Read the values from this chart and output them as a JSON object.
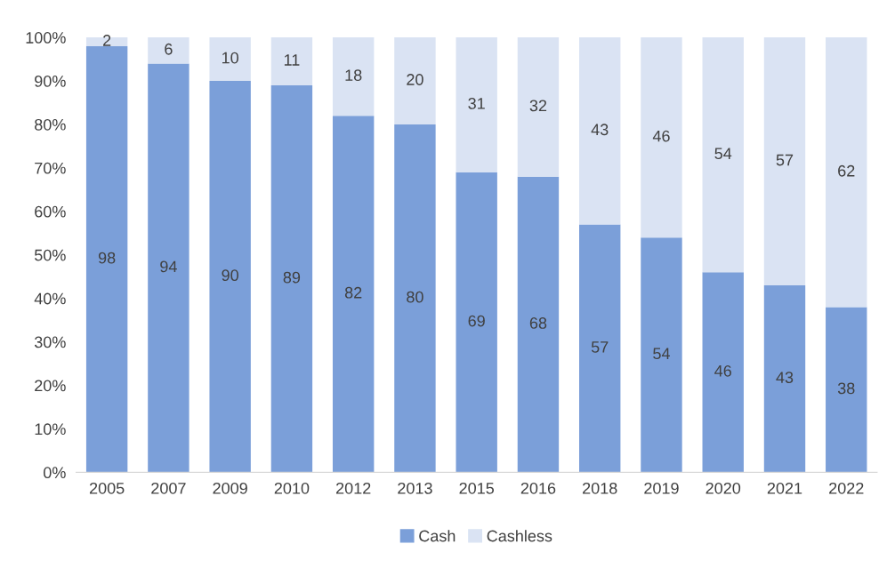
{
  "chart_data": {
    "type": "bar",
    "stacked": true,
    "categories": [
      "2005",
      "2007",
      "2009",
      "2010",
      "2012",
      "2013",
      "2015",
      "2016",
      "2018",
      "2019",
      "2020",
      "2021",
      "2022"
    ],
    "series": [
      {
        "name": "Cash",
        "color": "#7b9fd9",
        "values": [
          98,
          94,
          90,
          89,
          82,
          80,
          69,
          68,
          57,
          54,
          46,
          43,
          38
        ]
      },
      {
        "name": "Cashless",
        "color": "#dae3f3",
        "values": [
          2,
          6,
          10,
          11,
          18,
          20,
          31,
          32,
          43,
          46,
          54,
          57,
          62
        ]
      }
    ],
    "ylim": [
      0,
      100
    ],
    "yticks": [
      {
        "value": 0,
        "label": "0%"
      },
      {
        "value": 10,
        "label": "10%"
      },
      {
        "value": 20,
        "label": "20%"
      },
      {
        "value": 30,
        "label": "30%"
      },
      {
        "value": 40,
        "label": "40%"
      },
      {
        "value": 50,
        "label": "50%"
      },
      {
        "value": 60,
        "label": "60%"
      },
      {
        "value": 70,
        "label": "70%"
      },
      {
        "value": 80,
        "label": "80%"
      },
      {
        "value": 90,
        "label": "90%"
      },
      {
        "value": 100,
        "label": "100%"
      }
    ],
    "data_labels": true,
    "legend": "bottom",
    "grid": false
  }
}
